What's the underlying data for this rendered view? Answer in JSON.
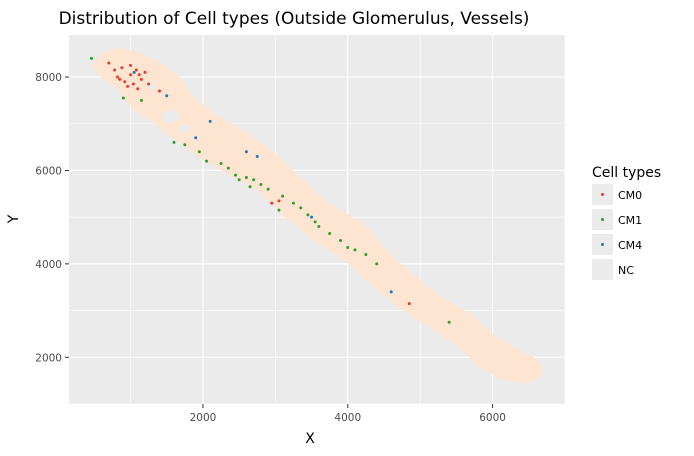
{
  "chart_data": {
    "type": "scatter",
    "title": "Distribution of Cell types (Outside Glomerulus, Vessels)",
    "xlabel": "X",
    "ylabel": "Y",
    "xlim": [
      150,
      7000
    ],
    "ylim": [
      1000,
      8900
    ],
    "xticks": [
      2000,
      4000,
      6000
    ],
    "xtick_labels": [
      "2000",
      "4000",
      "6000"
    ],
    "yticks": [
      2000,
      4000,
      6000,
      8000
    ],
    "ytick_labels": [
      "2000",
      "4000",
      "6000",
      "8000"
    ],
    "grid": true,
    "legend": {
      "title": "Cell types",
      "placement": "right",
      "entries": [
        "CM0",
        "CM1",
        "CM4",
        "NC"
      ]
    },
    "colors": {
      "CM0": "#e8382b",
      "CM1": "#2ca02c",
      "CM4": "#1f77b4",
      "NC": "#fde5d1",
      "panel": "#ebebeb",
      "grid": "#ffffff"
    },
    "series": [
      {
        "name": "NC",
        "region": [
          [
            520,
            8250
          ],
          [
            650,
            8480
          ],
          [
            820,
            8560
          ],
          [
            1050,
            8480
          ],
          [
            1350,
            8300
          ],
          [
            1650,
            7950
          ],
          [
            1850,
            7500
          ],
          [
            2150,
            7150
          ],
          [
            2550,
            6800
          ],
          [
            2950,
            6350
          ],
          [
            3250,
            5900
          ],
          [
            3700,
            5250
          ],
          [
            4200,
            4800
          ],
          [
            4600,
            4100
          ],
          [
            4850,
            3750
          ],
          [
            5250,
            3250
          ],
          [
            5700,
            2850
          ],
          [
            6000,
            2400
          ],
          [
            6350,
            2100
          ],
          [
            6600,
            1900
          ],
          [
            6650,
            1650
          ],
          [
            6450,
            1500
          ],
          [
            6100,
            1600
          ],
          [
            5800,
            1900
          ],
          [
            5550,
            2300
          ],
          [
            5150,
            2700
          ],
          [
            4750,
            3100
          ],
          [
            4350,
            3600
          ],
          [
            4000,
            4100
          ],
          [
            3600,
            4500
          ],
          [
            3200,
            5000
          ],
          [
            2800,
            5600
          ],
          [
            2400,
            5950
          ],
          [
            2000,
            6300
          ],
          [
            1700,
            6650
          ],
          [
            1400,
            7000
          ],
          [
            1050,
            7400
          ],
          [
            850,
            7800
          ],
          [
            620,
            8050
          ]
        ]
      },
      {
        "name": "CM0",
        "points": [
          [
            700,
            8300
          ],
          [
            780,
            8150
          ],
          [
            820,
            8000
          ],
          [
            880,
            8200
          ],
          [
            920,
            7900
          ],
          [
            960,
            7800
          ],
          [
            1000,
            8050
          ],
          [
            1040,
            7850
          ],
          [
            1080,
            8150
          ],
          [
            1100,
            7750
          ],
          [
            1150,
            7950
          ],
          [
            1200,
            8100
          ],
          [
            1250,
            7850
          ],
          [
            850,
            7950
          ],
          [
            1000,
            8250
          ],
          [
            1120,
            8050
          ],
          [
            3050,
            5350
          ],
          [
            2950,
            5300
          ],
          [
            4850,
            3150
          ],
          [
            1400,
            7700
          ]
        ]
      },
      {
        "name": "CM1",
        "points": [
          [
            460,
            8400
          ],
          [
            900,
            7550
          ],
          [
            1150,
            7500
          ],
          [
            1600,
            6600
          ],
          [
            1750,
            6550
          ],
          [
            1950,
            6400
          ],
          [
            2050,
            6200
          ],
          [
            2250,
            6150
          ],
          [
            2350,
            6050
          ],
          [
            2450,
            5900
          ],
          [
            2500,
            5800
          ],
          [
            2600,
            5850
          ],
          [
            2700,
            5800
          ],
          [
            2800,
            5700
          ],
          [
            2900,
            5600
          ],
          [
            3100,
            5450
          ],
          [
            3250,
            5300
          ],
          [
            3350,
            5200
          ],
          [
            3450,
            5050
          ],
          [
            3550,
            4900
          ],
          [
            3600,
            4800
          ],
          [
            3750,
            4650
          ],
          [
            3900,
            4500
          ],
          [
            4000,
            4350
          ],
          [
            4100,
            4300
          ],
          [
            4250,
            4200
          ],
          [
            4400,
            4000
          ],
          [
            2650,
            5650
          ],
          [
            3050,
            5150
          ],
          [
            5400,
            2750
          ]
        ]
      },
      {
        "name": "CM4",
        "points": [
          [
            1050,
            8100
          ],
          [
            1500,
            7600
          ],
          [
            2100,
            7050
          ],
          [
            2600,
            6400
          ],
          [
            2750,
            6300
          ],
          [
            3500,
            5000
          ],
          [
            4600,
            3400
          ],
          [
            1900,
            6700
          ]
        ]
      }
    ]
  }
}
